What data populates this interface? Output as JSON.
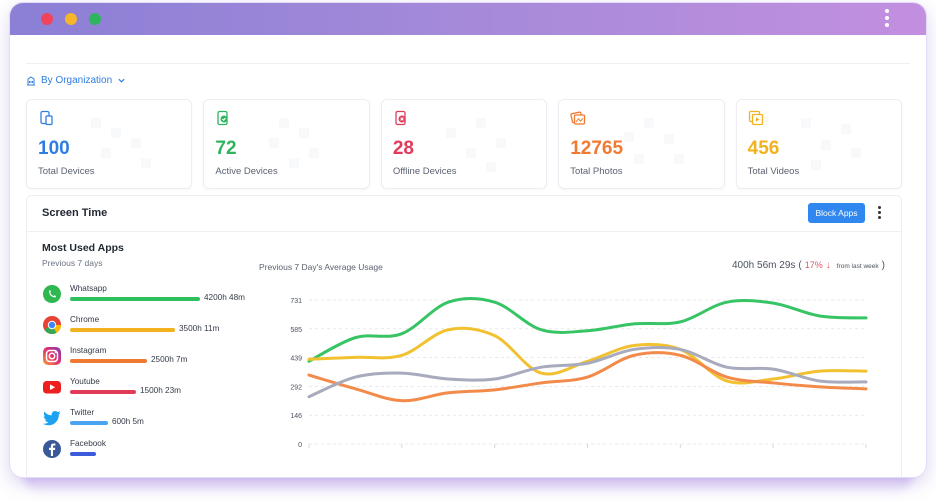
{
  "colors": {
    "blue": "#2f7de1",
    "green": "#2fb460",
    "red": "#e23b5a",
    "orange": "#f07a32",
    "yellow": "#f2b21f"
  },
  "org_selector": {
    "label": "By Organization",
    "icon": "building-icon"
  },
  "stats": [
    {
      "value": "100",
      "label": "Total Devices",
      "color": "#2f7de1",
      "icon": "tablet-icon"
    },
    {
      "value": "72",
      "label": "Active Devices",
      "color": "#2fb460",
      "icon": "device-check-icon"
    },
    {
      "value": "28",
      "label": "Offline Devices",
      "color": "#e23b5a",
      "icon": "device-off-icon"
    },
    {
      "value": "12765",
      "label": "Total Photos",
      "color": "#f07a32",
      "icon": "photos-icon"
    },
    {
      "value": "456",
      "label": "Total Videos",
      "color": "#f2b21f",
      "icon": "videos-icon"
    }
  ],
  "screen_time": {
    "title": "Screen Time",
    "block_button": "Block Apps"
  },
  "most_used": {
    "title": "Most Used Apps",
    "subtitle": "Previous 7 days",
    "apps": [
      {
        "name": "Whatsapp",
        "time": "4200h 48m",
        "fraction": 1.0,
        "color": "#2fc05e",
        "icon": "whatsapp-icon"
      },
      {
        "name": "Chrome",
        "time": "3500h 11m",
        "fraction": 0.81,
        "color": "#f2b21f",
        "icon": "chrome-icon"
      },
      {
        "name": "Instagram",
        "time": "2500h 7m",
        "fraction": 0.59,
        "color": "#f07a32",
        "icon": "instagram-icon"
      },
      {
        "name": "Youtube",
        "time": "1500h 23m",
        "fraction": 0.51,
        "color": "#e23b5a",
        "icon": "youtube-icon"
      },
      {
        "name": "Twitter",
        "time": "600h 5m",
        "fraction": 0.29,
        "color": "#4aa3f0",
        "icon": "twitter-icon"
      },
      {
        "name": "Facebook",
        "time": "",
        "fraction": 0.2,
        "color": "#3b5bdb",
        "icon": "facebook-icon"
      }
    ]
  },
  "usage": {
    "title": "Previous 7 Day's Average Usage",
    "total": "400h 56m 29s",
    "paren_open": "(",
    "change": "17%",
    "arrow": "↓",
    "from_text": "from last week",
    "paren_close": ")"
  },
  "chart_data": {
    "type": "line",
    "title": "Previous 7 Day's Average Usage",
    "x": [
      0,
      1,
      2,
      3,
      4,
      5,
      6,
      7,
      8,
      9,
      10,
      11,
      12
    ],
    "y_ticks": [
      0,
      146,
      292,
      439,
      585,
      731
    ],
    "ylim": [
      0,
      731
    ],
    "grid": true,
    "series": [
      {
        "color": "#37c464",
        "values": [
          420,
          540,
          560,
          720,
          720,
          580,
          575,
          610,
          620,
          720,
          715,
          650,
          640
        ]
      },
      {
        "color": "#f2c130",
        "values": [
          430,
          440,
          450,
          580,
          550,
          360,
          420,
          500,
          480,
          320,
          330,
          370,
          370
        ]
      },
      {
        "color": "#f28a4a",
        "values": [
          350,
          280,
          220,
          260,
          275,
          310,
          340,
          450,
          450,
          340,
          310,
          290,
          280
        ]
      },
      {
        "color": "#a8aabd",
        "values": [
          240,
          340,
          360,
          330,
          330,
          390,
          410,
          480,
          480,
          390,
          380,
          320,
          315
        ]
      }
    ]
  }
}
